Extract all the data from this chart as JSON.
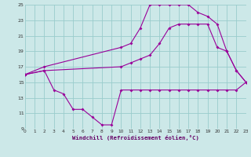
{
  "xlabel": "Windchill (Refroidissement éolien,°C)",
  "background_color": "#cce8e8",
  "grid_color": "#99cccc",
  "line_color": "#990099",
  "xmin": 0,
  "xmax": 23,
  "ymin": 9,
  "ymax": 25,
  "yticks": [
    9,
    11,
    13,
    15,
    17,
    19,
    21,
    23,
    25
  ],
  "xticks": [
    0,
    1,
    2,
    3,
    4,
    5,
    6,
    7,
    8,
    9,
    10,
    11,
    12,
    13,
    14,
    15,
    16,
    17,
    18,
    19,
    20,
    21,
    22,
    23
  ],
  "series1_x": [
    0,
    2,
    3,
    4,
    5,
    6,
    7,
    8,
    9,
    10,
    11,
    12,
    13,
    14,
    15,
    16,
    17,
    18,
    19,
    20,
    21,
    22,
    23
  ],
  "series1_y": [
    16,
    16.5,
    14,
    13.5,
    11.5,
    11.5,
    10.5,
    9.5,
    9.5,
    14,
    14,
    14,
    14,
    14,
    14,
    14,
    14,
    14,
    14,
    14,
    14,
    14,
    15
  ],
  "series2_x": [
    0,
    2,
    10,
    11,
    12,
    13,
    14,
    15,
    16,
    17,
    18,
    19,
    20,
    21,
    22,
    23
  ],
  "series2_y": [
    16,
    16.5,
    17,
    17.5,
    18,
    18.5,
    20,
    22,
    22.5,
    22.5,
    22.5,
    22.5,
    19.5,
    19,
    16.5,
    15
  ],
  "series3_x": [
    0,
    2,
    10,
    11,
    12,
    13,
    14,
    15,
    16,
    17,
    18,
    19,
    20,
    21,
    22,
    23
  ],
  "series3_y": [
    16,
    17,
    19.5,
    20,
    22,
    25,
    25,
    25,
    25,
    25,
    24,
    23.5,
    22.5,
    19,
    16.5,
    15
  ]
}
